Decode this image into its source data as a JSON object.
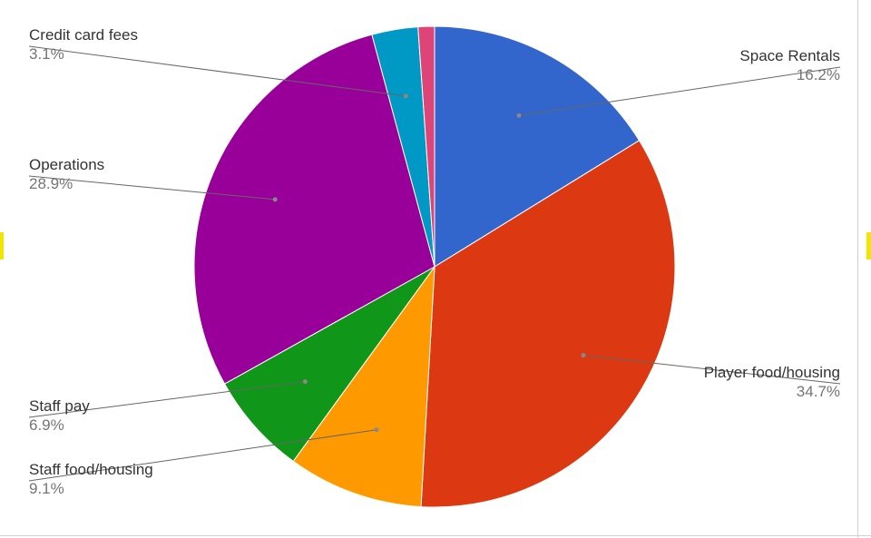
{
  "chart_data": {
    "type": "pie",
    "title": "",
    "legend": "none",
    "label_style": "leader-lines",
    "start_angle_deg": 0,
    "direction": "clockwise",
    "slices": [
      {
        "label": "Space Rentals",
        "percent_label": "16.2%",
        "value": 16.2,
        "color": "#3366cc",
        "side": "right"
      },
      {
        "label": "Player food/housing",
        "percent_label": "34.7%",
        "value": 34.7,
        "color": "#dc3912",
        "side": "right"
      },
      {
        "label": "Staff food/housing",
        "percent_label": "9.1%",
        "value": 9.1,
        "color": "#ff9900",
        "side": "left"
      },
      {
        "label": "Staff pay",
        "percent_label": "6.9%",
        "value": 6.9,
        "color": "#109618",
        "side": "left"
      },
      {
        "label": "Operations",
        "percent_label": "28.9%",
        "value": 28.9,
        "color": "#990099",
        "side": "left"
      },
      {
        "label": "Credit card fees",
        "percent_label": "3.1%",
        "value": 3.1,
        "color": "#0099c6",
        "side": "left"
      },
      {
        "label": "",
        "percent_label": "",
        "value": 1.1,
        "color": "#dd4477",
        "side": "none"
      }
    ]
  }
}
